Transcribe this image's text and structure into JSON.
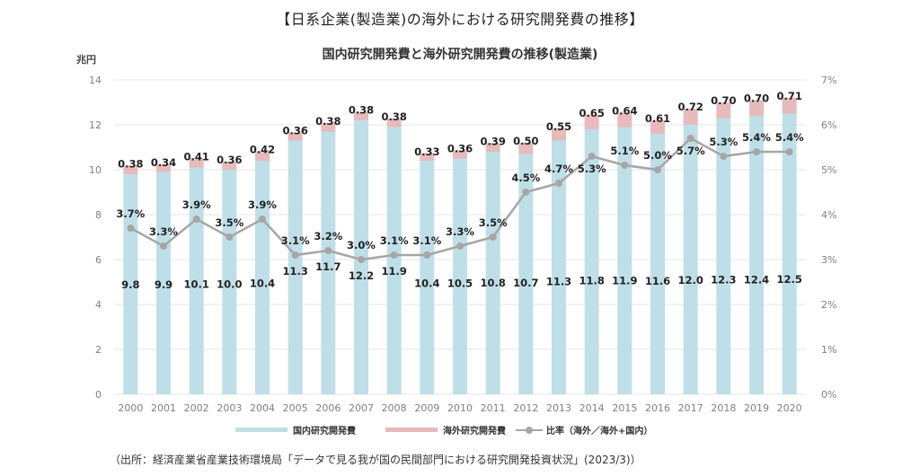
{
  "outer_title": "【日系企業(製造業)の海外における研究開発費の推移】",
  "source_note": "（出所：経済産業省産業技術環境局「データで見る我が国の民間部門における研究開発投資状況」(2023/3)）",
  "chart_data": {
    "type": "bar",
    "subtype": "stacked-bar-with-line",
    "title": "国内研究開発費と海外研究開発費の推移(製造業)",
    "ylabel": "兆円",
    "ylabel_right": "",
    "xlabel": "",
    "ylim": [
      0,
      14
    ],
    "yticks": [
      0,
      2,
      4,
      6,
      8,
      10,
      12,
      14
    ],
    "ylim_right": [
      0,
      7
    ],
    "yticks_right": [
      "0%",
      "1%",
      "2%",
      "3%",
      "4%",
      "5%",
      "6%",
      "7%"
    ],
    "grid": true,
    "legend_position": "bottom",
    "categories": [
      "2000",
      "2001",
      "2002",
      "2003",
      "2004",
      "2005",
      "2006",
      "2007",
      "2008",
      "2009",
      "2010",
      "2011",
      "2012",
      "2013",
      "2014",
      "2015",
      "2016",
      "2017",
      "2018",
      "2019",
      "2020"
    ],
    "series": [
      {
        "name": "国内研究開発費",
        "type": "bar",
        "axis": "left",
        "color": "#bfdfe8",
        "values": [
          9.8,
          9.9,
          10.1,
          10.0,
          10.4,
          11.3,
          11.7,
          12.2,
          11.9,
          10.4,
          10.5,
          10.8,
          10.7,
          11.3,
          11.8,
          11.9,
          11.6,
          12.0,
          12.3,
          12.4,
          12.5
        ],
        "labels": [
          "9.8",
          "9.9",
          "10.1",
          "10.0",
          "10.4",
          "11.3",
          "11.7",
          "12.2",
          "11.9",
          "10.4",
          "10.5",
          "10.8",
          "10.7",
          "11.3",
          "11.8",
          "11.9",
          "11.6",
          "12.0",
          "12.3",
          "12.4",
          "12.5"
        ]
      },
      {
        "name": "海外研究開発費",
        "type": "bar",
        "axis": "left",
        "color": "#e7babb",
        "values": [
          0.38,
          0.34,
          0.41,
          0.36,
          0.42,
          0.36,
          0.38,
          0.38,
          0.38,
          0.33,
          0.36,
          0.39,
          0.5,
          0.55,
          0.65,
          0.64,
          0.61,
          0.72,
          0.7,
          0.7,
          0.71
        ],
        "labels": [
          "0.38",
          "0.34",
          "0.41",
          "0.36",
          "0.42",
          "0.36",
          "0.38",
          "0.38",
          "0.38",
          "0.33",
          "0.36",
          "0.39",
          "0.50",
          "0.55",
          "0.65",
          "0.64",
          "0.61",
          "0.72",
          "0.70",
          "0.70",
          "0.71"
        ]
      },
      {
        "name": "比率（海外／海外+国内）",
        "type": "line",
        "axis": "right",
        "color": "#a6a6a6",
        "values": [
          3.7,
          3.3,
          3.9,
          3.5,
          3.9,
          3.1,
          3.2,
          3.0,
          3.1,
          3.1,
          3.3,
          3.5,
          4.5,
          4.7,
          5.3,
          5.1,
          5.0,
          5.7,
          5.3,
          5.4,
          5.4
        ],
        "labels": [
          "3.7%",
          "3.3%",
          "3.9%",
          "3.5%",
          "3.9%",
          "3.1%",
          "3.2%",
          "3.0%",
          "3.1%",
          "3.1%",
          "3.3%",
          "3.5%",
          "4.5%",
          "4.7%",
          "5.3%",
          "5.1%",
          "5.0%",
          "5.7%",
          "5.3%",
          "5.4%",
          "5.4%"
        ]
      }
    ]
  },
  "legend": [
    {
      "label": "国内研究開発費",
      "kind": "bar",
      "color": "#bfdfe8"
    },
    {
      "label": "海外研究開発費",
      "kind": "bar",
      "color": "#e7babb"
    },
    {
      "label": "比率（海外／海外+国内）",
      "kind": "line",
      "color": "#a6a6a6"
    }
  ]
}
